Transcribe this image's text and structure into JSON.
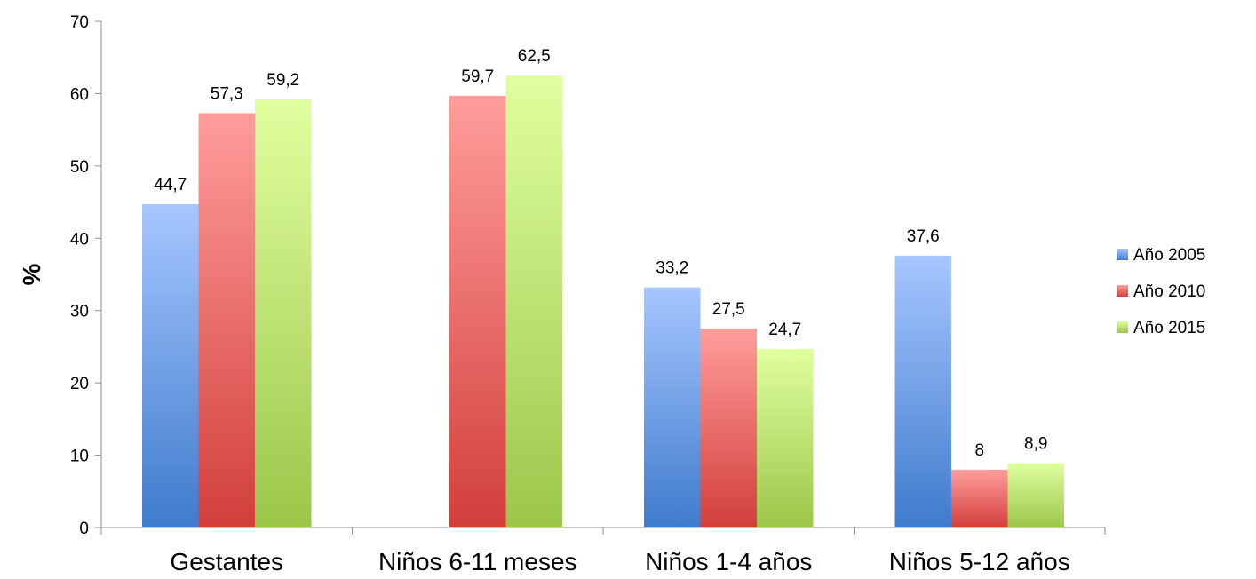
{
  "chart_data": {
    "type": "bar",
    "title": "",
    "xlabel": "",
    "ylabel": "%",
    "ylim": [
      0,
      70
    ],
    "yticks": [
      0,
      10,
      20,
      30,
      40,
      50,
      60,
      70
    ],
    "categories": [
      "Gestantes",
      "Niños 6-11 meses",
      "Niños 1-4 años",
      "Niños 5-12 años"
    ],
    "series": [
      {
        "name": "Año 2005",
        "values": [
          44.7,
          null,
          33.2,
          37.6
        ],
        "labels": [
          "44,7",
          "",
          "33,2",
          "37,6"
        ],
        "color_top": "#a6c6ff",
        "color_bottom": "#3f7bcc"
      },
      {
        "name": "Año 2010",
        "values": [
          57.3,
          59.7,
          27.5,
          8
        ],
        "labels": [
          "57,3",
          "59,7",
          "27,5",
          "8"
        ],
        "color_top": "#ff9d9b",
        "color_bottom": "#d23f3b"
      },
      {
        "name": "Año 2015",
        "values": [
          59.2,
          62.5,
          24.7,
          8.9
        ],
        "labels": [
          "59,2",
          "62,5",
          "24,7",
          "8,9"
        ],
        "color_top": "#e0ff9f",
        "color_bottom": "#9cc64a"
      }
    ],
    "grid": false,
    "legend": "right"
  }
}
